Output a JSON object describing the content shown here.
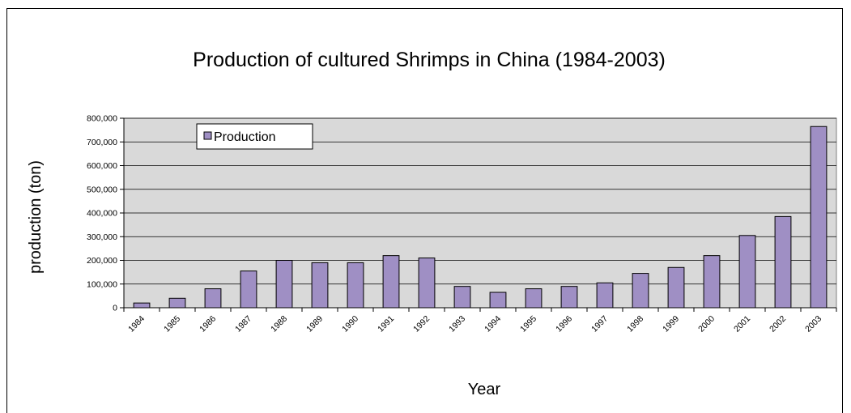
{
  "chart_data": {
    "type": "bar",
    "title": "Production of cultured Shrimps in China (1984-2003)",
    "xlabel": "Year",
    "ylabel": "production (ton)",
    "categories": [
      "1984",
      "1985",
      "1986",
      "1987",
      "1988",
      "1989",
      "1990",
      "1991",
      "1992",
      "1993",
      "1994",
      "1995",
      "1996",
      "1997",
      "1998",
      "1999",
      "2000",
      "2001",
      "2002",
      "2003"
    ],
    "series": [
      {
        "name": "Production",
        "values": [
          20000,
          40000,
          80000,
          155000,
          200000,
          190000,
          190000,
          220000,
          210000,
          90000,
          65000,
          80000,
          90000,
          105000,
          145000,
          170000,
          220000,
          305000,
          385000,
          765000
        ]
      }
    ],
    "ylim": [
      0,
      800000
    ],
    "yticks": [
      0,
      100000,
      200000,
      300000,
      400000,
      500000,
      600000,
      700000,
      800000
    ],
    "ytick_labels": [
      "0",
      "100,000",
      "200,000",
      "300,000",
      "400,000",
      "500,000",
      "600,000",
      "700,000",
      "800,000"
    ],
    "grid": true,
    "legend_position": "top-left",
    "colors": {
      "bar": "#9f8fc4",
      "bar_edge": "#000000",
      "plot_bg": "#d9d9d9",
      "gridline": "#000000"
    }
  }
}
